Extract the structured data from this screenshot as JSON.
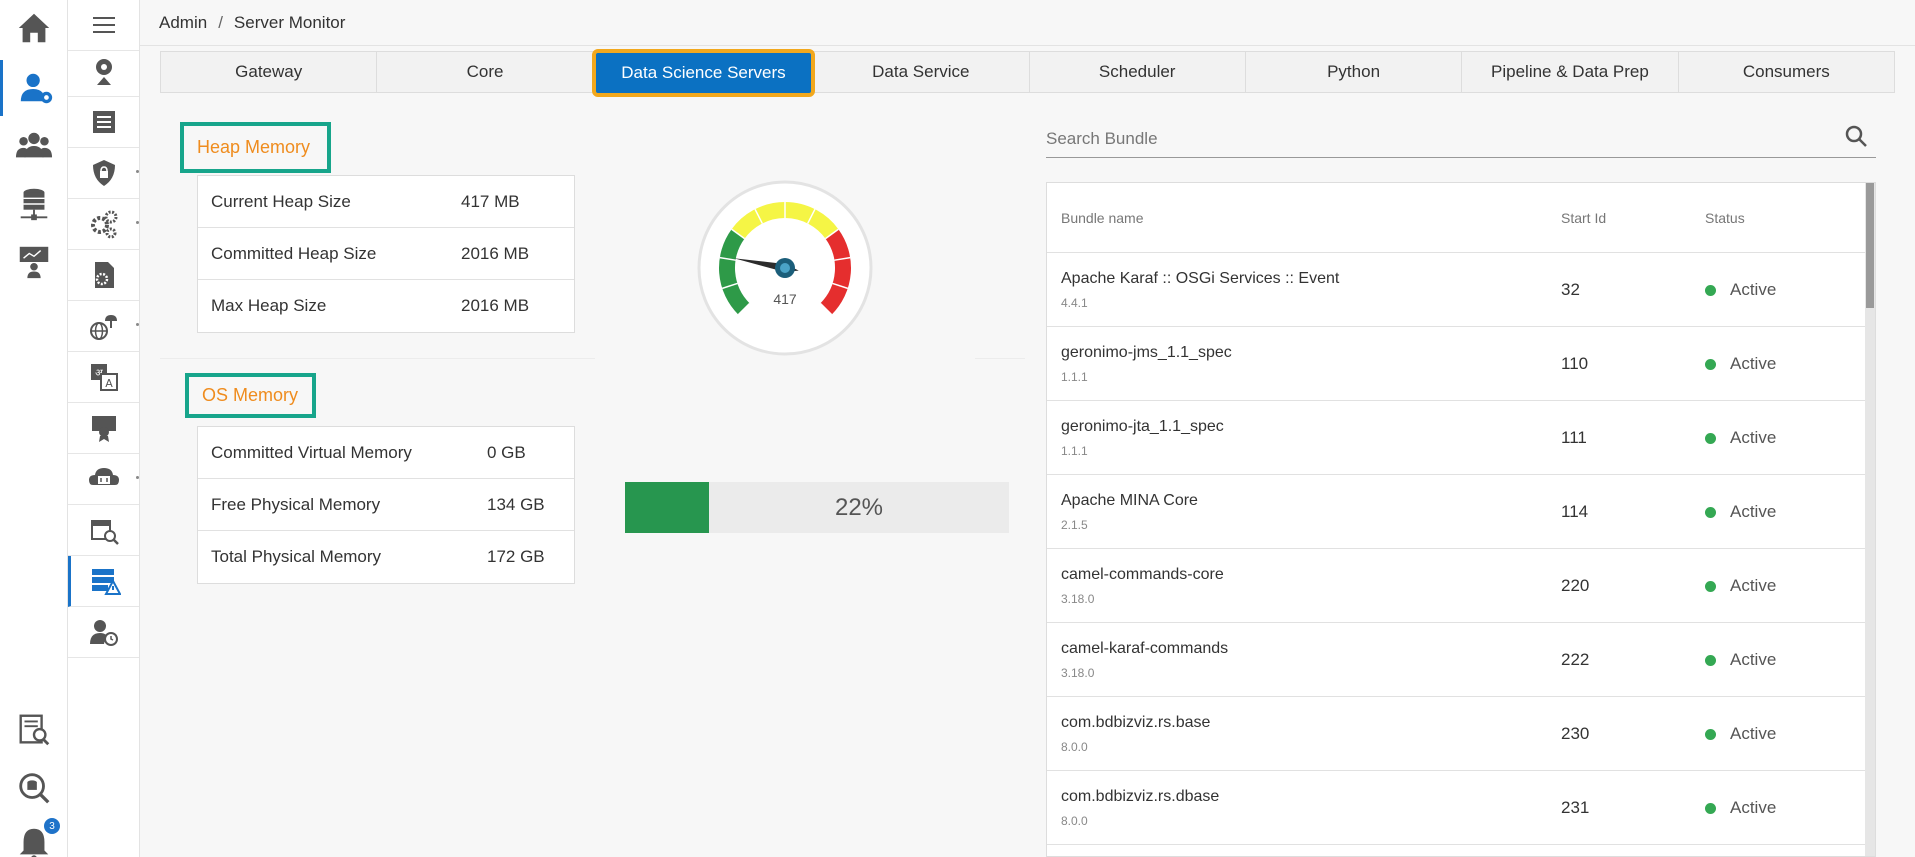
{
  "breadcrumb": {
    "root": "Admin",
    "separator": "/",
    "current": "Server Monitor"
  },
  "rail": {
    "items": [
      "home-icon",
      "admin-user-gear-icon",
      "users-group-icon",
      "database-network-icon",
      "presentation-user-icon",
      "search-report-icon",
      "search-database-icon",
      "notification-bell-icon"
    ],
    "notification_count": "3"
  },
  "subnav": {
    "items": [
      "user-certificate-icon",
      "document-list-icon",
      "shield-lock-icon",
      "gears-icon",
      "document-gear-icon",
      "globe-cloud-icon",
      "language-translate-icon",
      "certificate-board-icon",
      "cloud-server-icon",
      "calendar-search-icon",
      "server-warning-icon",
      "user-clock-icon"
    ],
    "active_index": 10
  },
  "tabs": [
    {
      "label": "Gateway"
    },
    {
      "label": "Core"
    },
    {
      "label": "Data Science Servers",
      "active": true
    },
    {
      "label": "Data Service"
    },
    {
      "label": "Scheduler"
    },
    {
      "label": "Python"
    },
    {
      "label": "Pipeline & Data Prep"
    },
    {
      "label": "Consumers"
    }
  ],
  "heap_memory": {
    "title": "Heap Memory",
    "rows": [
      {
        "label": "Current Heap Size",
        "value": "417 MB"
      },
      {
        "label": "Committed Heap Size",
        "value": "2016 MB"
      },
      {
        "label": "Max Heap Size",
        "value": "2016 MB"
      }
    ],
    "gauge": {
      "value": 417,
      "max": 2016,
      "label": "417",
      "colors": {
        "low": "#2e9a48",
        "mid": "#f5f545",
        "high": "#e52e2e"
      }
    }
  },
  "os_memory": {
    "title": "OS Memory",
    "rows": [
      {
        "label": "Committed Virtual Memory",
        "value": "0 GB"
      },
      {
        "label": "Free Physical Memory",
        "value": "134 GB"
      },
      {
        "label": "Total Physical Memory",
        "value": "172 GB"
      }
    ],
    "progress": {
      "percent": 22,
      "label": "22%",
      "color": "#27964f"
    }
  },
  "search": {
    "placeholder": "Search Bundle",
    "value": ""
  },
  "bundles": {
    "columns": {
      "name": "Bundle name",
      "start_id": "Start Id",
      "status": "Status"
    },
    "rows": [
      {
        "name": "Apache Karaf :: OSGi Services :: Event",
        "version": "4.4.1",
        "start_id": "32",
        "status": "Active"
      },
      {
        "name": "geronimo-jms_1.1_spec",
        "version": "1.1.1",
        "start_id": "110",
        "status": "Active"
      },
      {
        "name": "geronimo-jta_1.1_spec",
        "version": "1.1.1",
        "start_id": "111",
        "status": "Active"
      },
      {
        "name": "Apache MINA Core",
        "version": "2.1.5",
        "start_id": "114",
        "status": "Active"
      },
      {
        "name": "camel-commands-core",
        "version": "3.18.0",
        "start_id": "220",
        "status": "Active"
      },
      {
        "name": "camel-karaf-commands",
        "version": "3.18.0",
        "start_id": "222",
        "status": "Active"
      },
      {
        "name": "com.bdbizviz.rs.base",
        "version": "8.0.0",
        "start_id": "230",
        "status": "Active"
      },
      {
        "name": "com.bdbizviz.rs.dbase",
        "version": "8.0.0",
        "start_id": "231",
        "status": "Active"
      }
    ],
    "status_color": "#34a853"
  }
}
